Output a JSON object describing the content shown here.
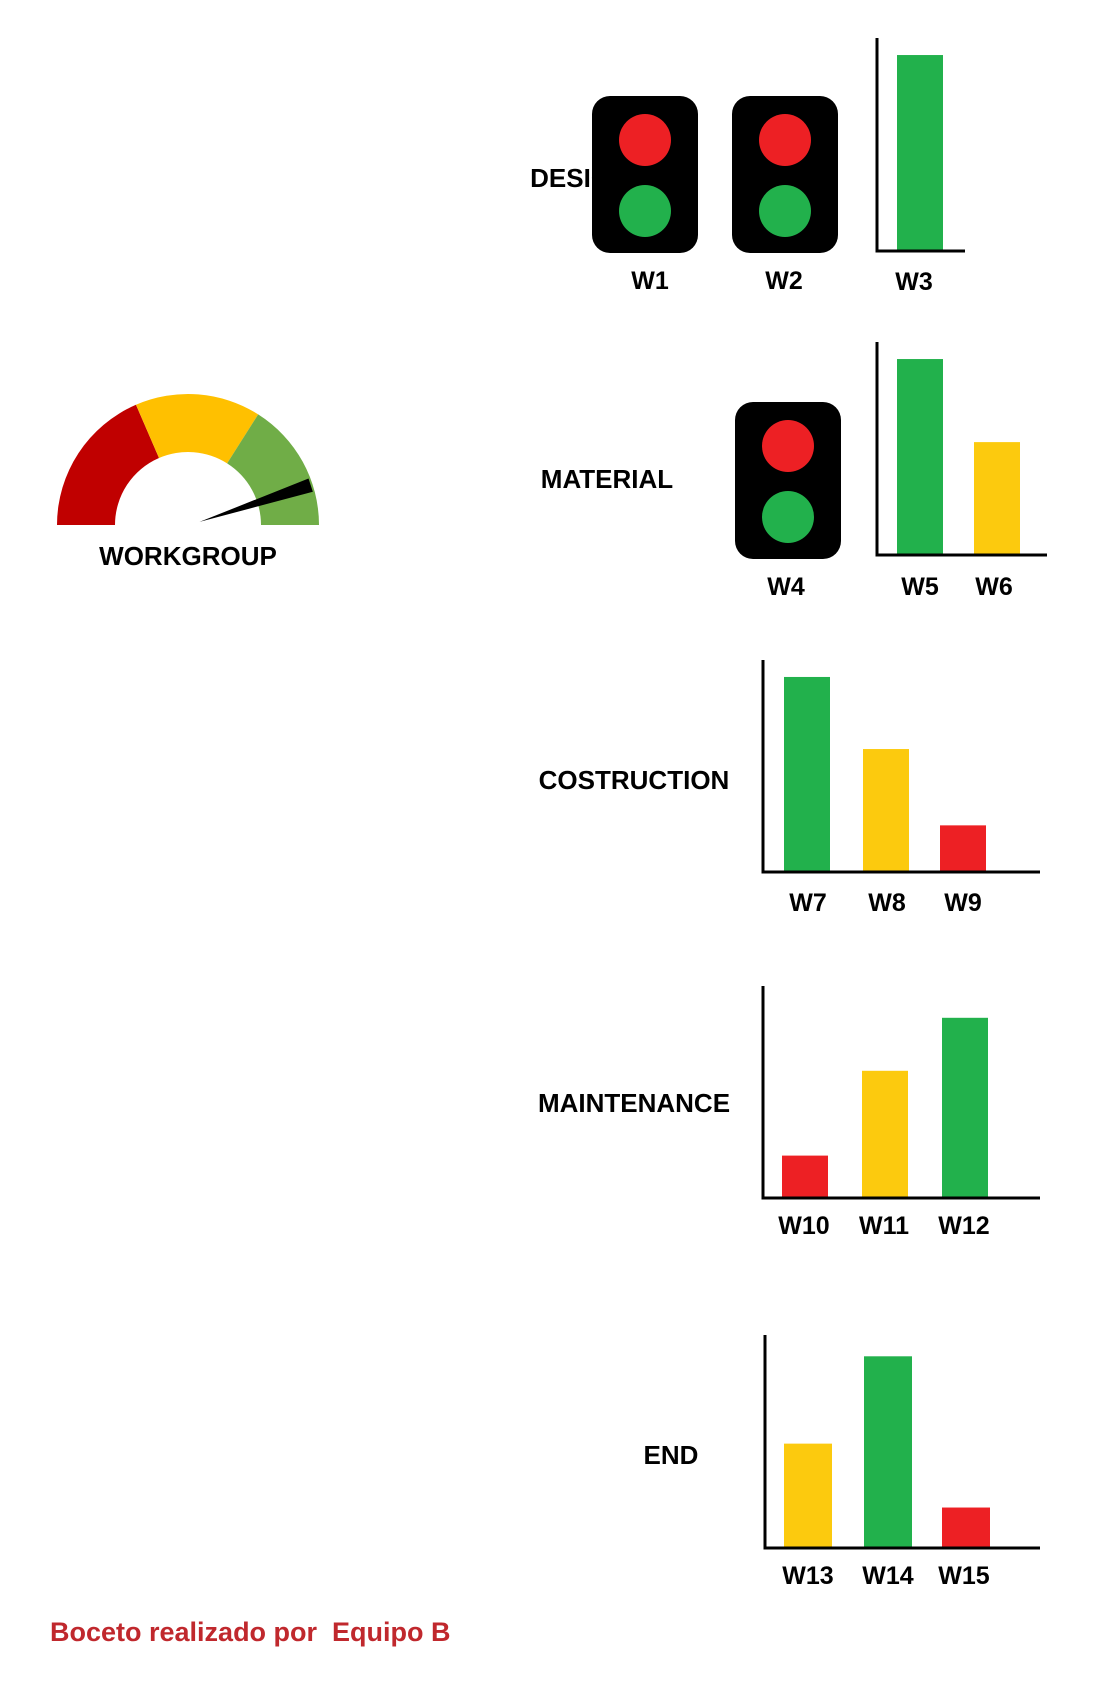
{
  "colors": {
    "red": "#ed2024",
    "yellow": "#fcca0e",
    "green": "#22b14c",
    "gauge_red": "#c00000",
    "gauge_yellow": "#ffc000",
    "gauge_green": "#70ad47",
    "black": "#000000",
    "footer": "#c0282d"
  },
  "gauge": {
    "label": "WORKGROUP",
    "segments": [
      "red",
      "yellow",
      "green"
    ],
    "needle_fraction": 0.9
  },
  "sections": [
    {
      "label": "DESIGN",
      "lights": [
        {
          "label": "W1",
          "top": "red",
          "bottom": "green"
        },
        {
          "label": "W2",
          "top": "red",
          "bottom": "green"
        }
      ],
      "bars": [
        {
          "label": "W3",
          "value": 0.92,
          "color": "green"
        }
      ]
    },
    {
      "label": "MATERIAL",
      "lights": [
        {
          "label": "W4",
          "top": "red",
          "bottom": "green"
        }
      ],
      "bars": [
        {
          "label": "W5",
          "value": 0.92,
          "color": "green"
        },
        {
          "label": "W6",
          "value": 0.53,
          "color": "yellow"
        }
      ]
    },
    {
      "label": "COSTRUCTION",
      "lights": [],
      "bars": [
        {
          "label": "W7",
          "value": 0.92,
          "color": "green"
        },
        {
          "label": "W8",
          "value": 0.58,
          "color": "yellow"
        },
        {
          "label": "W9",
          "value": 0.22,
          "color": "red"
        }
      ]
    },
    {
      "label": "MAINTENANCE",
      "lights": [],
      "bars": [
        {
          "label": "W10",
          "value": 0.2,
          "color": "red"
        },
        {
          "label": "W11",
          "value": 0.6,
          "color": "yellow"
        },
        {
          "label": "W12",
          "value": 0.85,
          "color": "green"
        }
      ]
    },
    {
      "label": "END",
      "lights": [],
      "bars": [
        {
          "label": "W13",
          "value": 0.49,
          "color": "yellow"
        },
        {
          "label": "W14",
          "value": 0.9,
          "color": "green"
        },
        {
          "label": "W15",
          "value": 0.19,
          "color": "red"
        }
      ]
    }
  ],
  "chart_data": {
    "type": "bar",
    "title": "",
    "xlabel": "",
    "ylabel": "",
    "ylim": [
      0,
      1
    ],
    "grid": false,
    "groups": [
      {
        "group": "DESIGN",
        "categories": [
          "W3"
        ],
        "values": [
          0.92
        ],
        "colors": [
          "green"
        ]
      },
      {
        "group": "MATERIAL",
        "categories": [
          "W5",
          "W6"
        ],
        "values": [
          0.92,
          0.53
        ],
        "colors": [
          "green",
          "yellow"
        ]
      },
      {
        "group": "COSTRUCTION",
        "categories": [
          "W7",
          "W8",
          "W9"
        ],
        "values": [
          0.92,
          0.58,
          0.22
        ],
        "colors": [
          "green",
          "yellow",
          "red"
        ]
      },
      {
        "group": "MAINTENANCE",
        "categories": [
          "W10",
          "W11",
          "W12"
        ],
        "values": [
          0.2,
          0.6,
          0.85
        ],
        "colors": [
          "red",
          "yellow",
          "green"
        ]
      },
      {
        "group": "END",
        "categories": [
          "W13",
          "W14",
          "W15"
        ],
        "values": [
          0.49,
          0.9,
          0.19
        ],
        "colors": [
          "yellow",
          "green",
          "red"
        ]
      }
    ]
  },
  "footer": {
    "text": "Boceto realizado por  Equipo B"
  }
}
